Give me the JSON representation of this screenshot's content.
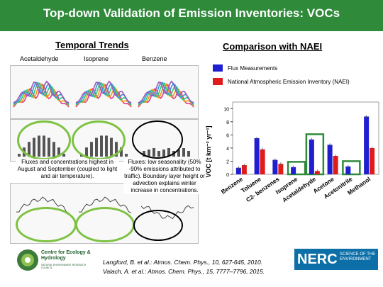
{
  "title": "Top-down Validation of Emission Inventories: VOCs",
  "left": {
    "heading": "Temporal Trends",
    "labels": [
      "Acetaldehyde",
      "Isoprene",
      "Benzene"
    ],
    "caption_left": "Fluxes and concentrations highest in August and September (coupled to light and air temperature).",
    "caption_right": "Fluxes: low seasonality (50% -90% emissions attributed to traffic). Boundary layer height or advection explains winter increase in concentrations."
  },
  "right": {
    "heading": "Comparison with NAEI",
    "legend": [
      {
        "label": "Flux Measurements",
        "color": "#1f1fd1"
      },
      {
        "label": "National Atmospheric Emission Inventory (NAEI)",
        "color": "#e01b1b"
      }
    ]
  },
  "chart_data": {
    "type": "bar",
    "categories": [
      "Benzene",
      "Toluene",
      "C2- benzenes",
      "Isoprene",
      "Acetaldehyde",
      "Acetone",
      "Acetonitrile",
      "Methanol"
    ],
    "series": [
      {
        "name": "Flux Measurements",
        "color": "#1f1fd1",
        "values": [
          1.0,
          5.5,
          2.2,
          1.1,
          5.3,
          4.5,
          1.2,
          8.8
        ]
      },
      {
        "name": "National Atmospheric Emission Inventory (NAEI)",
        "color": "#e01b1b",
        "values": [
          1.4,
          3.8,
          1.6,
          0,
          0.5,
          2.8,
          0,
          4.0
        ]
      }
    ],
    "ylabel": "VOC [t km⁻² yr⁻¹]",
    "ylim": [
      0,
      11
    ],
    "yticks": [
      "0",
      "2",
      "4",
      "6",
      "8",
      "10"
    ],
    "highlighted": [
      "Isoprene",
      "Acetaldehyde",
      "Acetonitrile"
    ],
    "highlight_color": "#2f8a3a"
  },
  "references": [
    "Langford, B. et al.: Atmos. Chem. Phys., 10, 627-645, 2010.",
    "Valach, A. et al.: Atmos. Chem. Phys., 15, 7777–7796, 2015."
  ],
  "logos": {
    "ceh": {
      "name": "Centre for Ecology & Hydrology",
      "sub": "NATURAL ENVIRONMENT RESEARCH COUNCIL"
    },
    "nerc": {
      "name": "NERC",
      "sub": "SCIENCE OF THE ENVIRONMENT"
    }
  }
}
